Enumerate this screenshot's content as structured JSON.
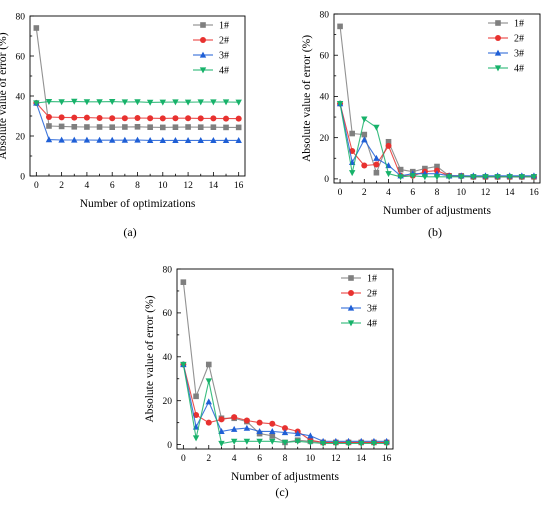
{
  "figure": {
    "panel_labels": [
      "(a)",
      "(b)",
      "(c)"
    ]
  },
  "chart_data": [
    {
      "type": "line",
      "panel": "(a)",
      "xlabel": "Number of optimizations",
      "ylabel": "Absolute value of error (%)",
      "xlim": [
        -0.5,
        16.5
      ],
      "ylim": [
        0,
        80
      ],
      "xticks": [
        0,
        2,
        4,
        6,
        8,
        10,
        12,
        14,
        16
      ],
      "yticks": [
        0,
        20,
        40,
        60,
        80
      ],
      "grid": false,
      "legend_position": "top-right",
      "x": [
        0,
        1,
        2,
        3,
        4,
        5,
        6,
        7,
        8,
        9,
        10,
        11,
        12,
        13,
        14,
        15,
        16
      ],
      "series": [
        {
          "name": "1#",
          "color": "#7f7f7f",
          "marker": "square",
          "values": [
            74,
            25,
            24.8,
            24.6,
            24.5,
            24.5,
            24.4,
            24.5,
            24.6,
            24.4,
            24.3,
            24.4,
            24.5,
            24.4,
            24.4,
            24.3,
            24.3
          ]
        },
        {
          "name": "2#",
          "color": "#e8312f",
          "marker": "circle",
          "values": [
            36.5,
            29.5,
            29.3,
            29.2,
            29.2,
            29.0,
            28.9,
            28.9,
            29.0,
            28.9,
            28.8,
            28.9,
            28.9,
            28.8,
            28.8,
            28.7,
            28.7
          ]
        },
        {
          "name": "3#",
          "color": "#1f5fd6",
          "marker": "triangle-up",
          "values": [
            36.5,
            18.2,
            18.0,
            18.0,
            18.0,
            17.9,
            17.9,
            17.9,
            18.0,
            17.8,
            17.8,
            17.8,
            17.8,
            17.8,
            17.8,
            17.8,
            17.8
          ]
        },
        {
          "name": "4#",
          "color": "#17b26a",
          "marker": "triangle-down",
          "values": [
            36.5,
            37.2,
            37.1,
            37.3,
            37.1,
            37.1,
            37.2,
            37.0,
            37.1,
            36.8,
            36.9,
            37.0,
            36.9,
            37.0,
            37.0,
            37.0,
            36.9
          ]
        }
      ]
    },
    {
      "type": "line",
      "panel": "(b)",
      "xlabel": "Number of adjustments",
      "ylabel": "Absolute value of error (%)",
      "xlim": [
        -0.5,
        16.5
      ],
      "ylim": [
        -2,
        80
      ],
      "xticks": [
        0,
        2,
        4,
        6,
        8,
        10,
        12,
        14,
        16
      ],
      "yticks": [
        0,
        20,
        40,
        60,
        80
      ],
      "grid": false,
      "legend_position": "top-right",
      "x": [
        0,
        1,
        2,
        3,
        4,
        5,
        6,
        7,
        8,
        9,
        10,
        11,
        12,
        13,
        14,
        15,
        16
      ],
      "series": [
        {
          "name": "1#",
          "color": "#7f7f7f",
          "marker": "square",
          "values": [
            74,
            22,
            21.5,
            3,
            18,
            4.5,
            3.5,
            5,
            6,
            1.5,
            1.5,
            1,
            1,
            1,
            1,
            1,
            1
          ]
        },
        {
          "name": "2#",
          "color": "#e8312f",
          "marker": "circle",
          "values": [
            36.5,
            13.5,
            6.5,
            7,
            16,
            1.5,
            1.5,
            3.5,
            4,
            1.5,
            1.3,
            1,
            1,
            1,
            1,
            1,
            1
          ]
        },
        {
          "name": "3#",
          "color": "#1f5fd6",
          "marker": "triangle-up",
          "values": [
            36.5,
            8,
            19,
            10,
            6.5,
            1.5,
            2.5,
            2.5,
            2.5,
            1.5,
            1.5,
            1.5,
            1.5,
            1.5,
            1.5,
            1.5,
            1.5
          ]
        },
        {
          "name": "4#",
          "color": "#17b26a",
          "marker": "triangle-down",
          "values": [
            36.5,
            3,
            29,
            25,
            2.5,
            1,
            1.5,
            1,
            1,
            1,
            1,
            1,
            1,
            1,
            1,
            1,
            1
          ]
        }
      ]
    },
    {
      "type": "line",
      "panel": "(c)",
      "xlabel": "Number of adjustments",
      "ylabel": "Absolute value of error (%)",
      "xlim": [
        -0.5,
        16.5
      ],
      "ylim": [
        -2,
        80
      ],
      "xticks": [
        0,
        2,
        4,
        6,
        8,
        10,
        12,
        14,
        16
      ],
      "yticks": [
        0,
        20,
        40,
        60,
        80
      ],
      "grid": false,
      "legend_position": "top-right",
      "x": [
        0,
        1,
        2,
        3,
        4,
        5,
        6,
        7,
        8,
        9,
        10,
        11,
        12,
        13,
        14,
        15,
        16
      ],
      "series": [
        {
          "name": "1#",
          "color": "#7f7f7f",
          "marker": "square",
          "values": [
            74,
            22,
            36.5,
            12,
            12,
            10.5,
            5,
            4,
            1,
            2,
            1.5,
            1,
            1,
            1,
            1,
            1,
            1
          ]
        },
        {
          "name": "2#",
          "color": "#e8312f",
          "marker": "circle",
          "values": [
            36.5,
            13.5,
            10,
            11.5,
            12.5,
            11,
            10,
            9.5,
            7.5,
            6,
            2,
            1,
            1,
            1,
            1,
            1,
            1
          ]
        },
        {
          "name": "3#",
          "color": "#1f5fd6",
          "marker": "triangle-up",
          "values": [
            36.5,
            8,
            19.5,
            6,
            7,
            7.5,
            6,
            6,
            5.5,
            5,
            4,
            1.5,
            1.5,
            1.5,
            1.5,
            1.5,
            1.5
          ]
        },
        {
          "name": "4#",
          "color": "#17b26a",
          "marker": "triangle-down",
          "values": [
            36.5,
            3,
            29,
            0.5,
            1.5,
            1.5,
            1.5,
            1.5,
            1,
            1.5,
            1,
            0.5,
            0.5,
            0.5,
            0.5,
            0.5,
            0.5
          ]
        }
      ]
    }
  ]
}
